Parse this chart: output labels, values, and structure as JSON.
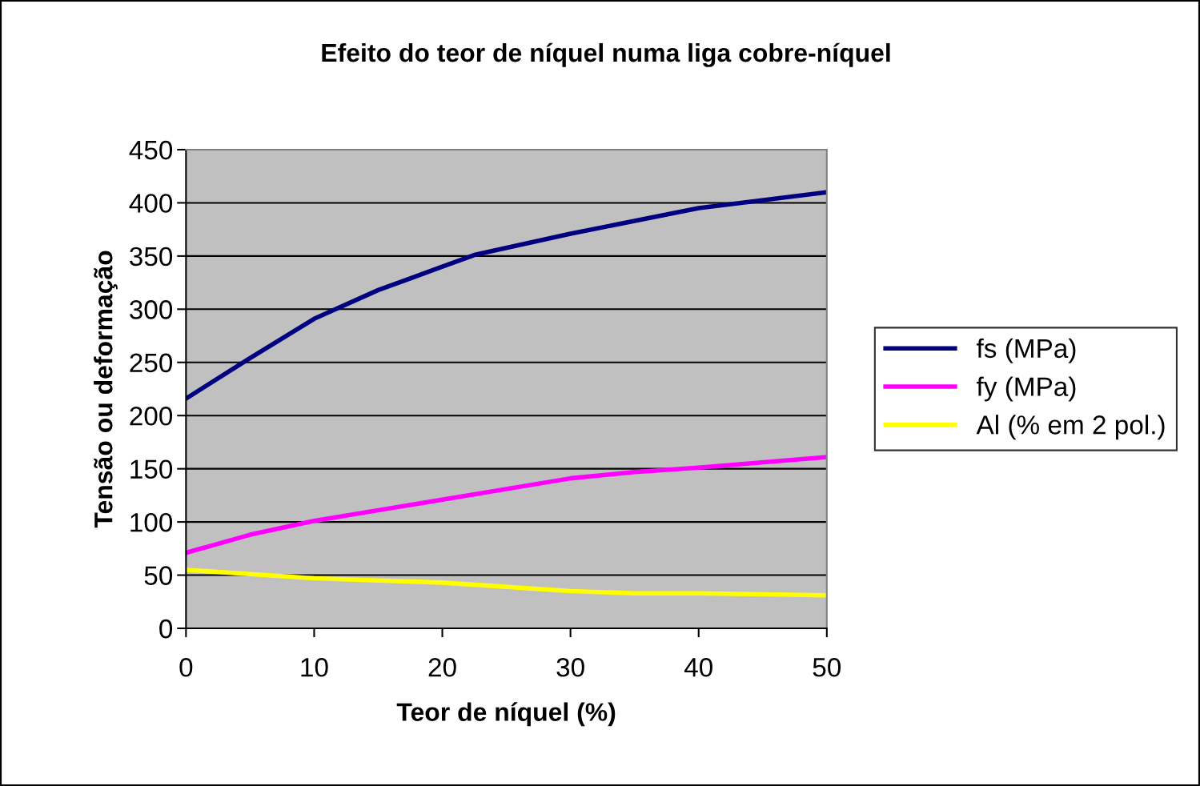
{
  "chart_data": {
    "type": "line",
    "title": "Efeito do teor de níquel numa liga cobre-níquel",
    "xlabel": "Teor de níquel (%)",
    "ylabel": "Tensão ou deformação",
    "xlim": [
      0,
      50
    ],
    "xticks": [
      0,
      10,
      20,
      30,
      40,
      50
    ],
    "ylim": [
      0,
      450
    ],
    "yticks": [
      0,
      50,
      100,
      150,
      200,
      250,
      300,
      350,
      400,
      450
    ],
    "grid": "y",
    "legend": "right",
    "marker": "none",
    "line_style": "solid",
    "series": [
      {
        "name": "fs (MPa)",
        "color": "#000080",
        "x": [
          0,
          5,
          10,
          15,
          20,
          22.5,
          30,
          40,
          50
        ],
        "values": [
          216,
          254,
          291,
          318,
          340,
          351,
          371,
          395,
          410
        ]
      },
      {
        "name": "fy (MPa)",
        "color": "#ff00ff",
        "x": [
          0,
          5,
          10,
          20,
          30,
          35,
          40,
          50
        ],
        "values": [
          71,
          88,
          101,
          121,
          141,
          147,
          151,
          161
        ]
      },
      {
        "name": "Al (% em 2 pol.)",
        "color": "#ffff00",
        "x": [
          0,
          10,
          20,
          30,
          35,
          40,
          50
        ],
        "values": [
          55,
          47,
          43,
          35,
          33,
          33,
          31
        ]
      }
    ]
  }
}
